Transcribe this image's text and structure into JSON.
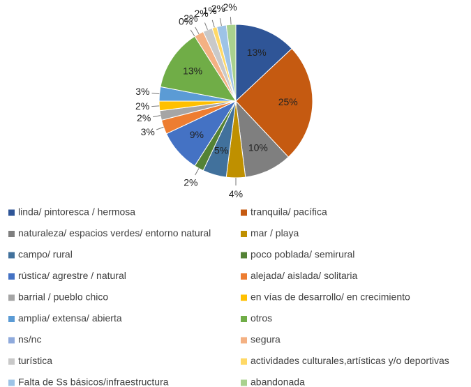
{
  "chart_data": {
    "type": "pie",
    "categories": [
      "linda/ pintoresca / hermosa",
      "tranquila/ pacífica",
      "naturaleza/ espacios verdes/ entorno natural",
      "mar / playa",
      "campo/ rural",
      "poco poblada/  semirural",
      "rústica/ agrestre / natural",
      "alejada/ aislada/ solitaria",
      "barrial / pueblo chico",
      "en vías de desarrollo/ en crecimiento",
      "amplia/ extensa/ abierta",
      "otros",
      "ns/nc",
      "segura",
      "turística",
      "actividades culturales,artísticas y/o deportivas",
      "Falta de Ss básicos/infraestructura",
      "abandonada"
    ],
    "values": [
      13,
      25,
      10,
      4,
      5,
      2,
      9,
      3,
      2,
      2,
      3,
      13,
      0,
      2,
      2,
      1,
      2,
      2
    ],
    "value_labels": [
      "13%",
      "25%",
      "10%",
      "4%",
      "5%",
      "2%",
      "9%",
      "3%",
      "2%",
      "2%",
      "3%",
      "13%",
      "0%",
      "2%",
      "2%",
      "1%",
      "2%",
      "2%"
    ],
    "colors": [
      "#2f5597",
      "#c55a11",
      "#7f7f7f",
      "#bf9000",
      "#41719c",
      "#548235",
      "#4472c4",
      "#ed7d31",
      "#a5a5a5",
      "#ffc000",
      "#5b9bd5",
      "#70ad47",
      "#8faadc",
      "#f4b183",
      "#c9c9c9",
      "#ffd966",
      "#9dc3e6",
      "#a9d18e"
    ]
  }
}
